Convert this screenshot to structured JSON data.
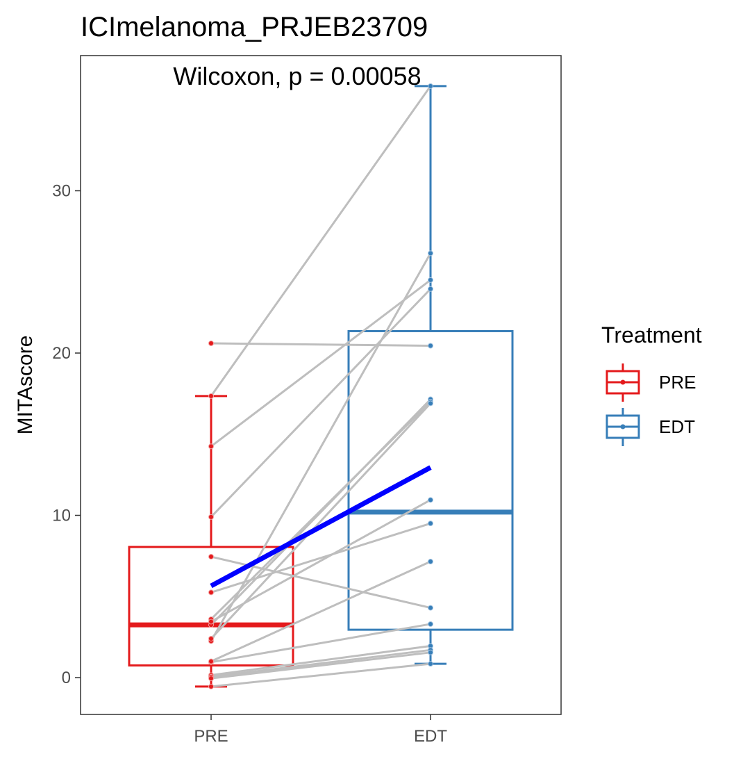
{
  "chart_data": {
    "type": "box",
    "title": "ICImelanoma_PRJEB23709",
    "annotation": "Wilcoxon, p = 0.00058",
    "xlabel": "",
    "ylabel": "MITAscore",
    "categories": [
      "PRE",
      "EDT"
    ],
    "ylim": [
      -2.3,
      38.3
    ],
    "yticks": [
      0,
      10,
      20,
      30
    ],
    "grid": false,
    "legend": {
      "title": "Treatment",
      "position": "right",
      "entries": [
        {
          "label": "PRE",
          "color": "#e41a1c"
        },
        {
          "label": "EDT",
          "color": "#377eb8"
        }
      ]
    },
    "boxes": [
      {
        "group": "PRE",
        "color": "#e41a1c",
        "whisker_low": -0.55,
        "q1": 0.75,
        "median": 3.25,
        "q3": 8.05,
        "whisker_high": 17.35
      },
      {
        "group": "EDT",
        "color": "#377eb8",
        "whisker_low": 0.85,
        "q1": 2.95,
        "median": 10.2,
        "q3": 21.35,
        "whisker_high": 36.45
      }
    ],
    "pairs": [
      {
        "pre": 17.35,
        "edt": 36.45
      },
      {
        "pre": 20.6,
        "edt": 20.45
      },
      {
        "pre": 14.25,
        "edt": 24.5
      },
      {
        "pre": 9.9,
        "edt": 23.95
      },
      {
        "pre": 2.25,
        "edt": 26.15
      },
      {
        "pre": 7.45,
        "edt": 4.3
      },
      {
        "pre": 5.25,
        "edt": 9.5
      },
      {
        "pre": 3.25,
        "edt": 17.15
      },
      {
        "pre": 3.6,
        "edt": 17.0
      },
      {
        "pre": 2.4,
        "edt": 16.9
      },
      {
        "pre": 3.45,
        "edt": 10.95
      },
      {
        "pre": 0.95,
        "edt": 3.3
      },
      {
        "pre": 0.15,
        "edt": 1.95
      },
      {
        "pre": 0.05,
        "edt": 1.7
      },
      {
        "pre": -0.05,
        "edt": 1.55
      },
      {
        "pre": -0.55,
        "edt": 0.85
      },
      {
        "pre": 1.0,
        "edt": 7.15
      }
    ],
    "mean_line": {
      "color": "#0000ff",
      "pre": 5.65,
      "edt": 12.95
    },
    "pair_line_color": "#bebebe"
  }
}
